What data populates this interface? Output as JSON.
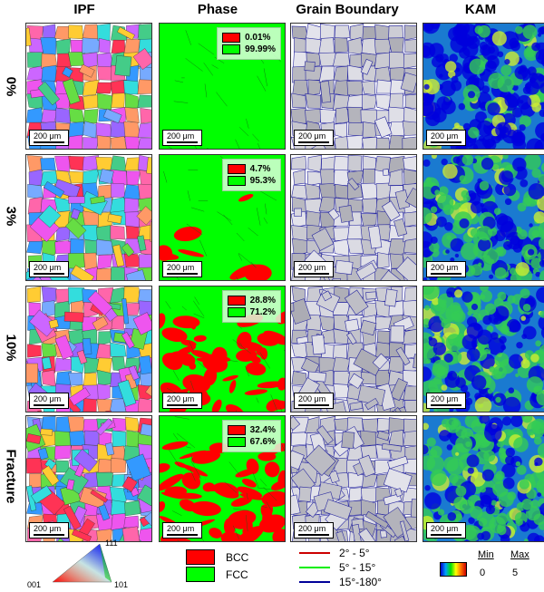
{
  "columns": [
    "IPF",
    "Phase",
    "Grain Boundary",
    "KAM"
  ],
  "rows": [
    {
      "label": "0%",
      "bcc": "0.01%",
      "fcc": "99.99%"
    },
    {
      "label": "3%",
      "bcc": "4.7%",
      "fcc": "95.3%"
    },
    {
      "label": "10%",
      "bcc": "28.8%",
      "fcc": "71.2%"
    },
    {
      "label": "Fracture",
      "bcc": "32.4%",
      "fcc": "67.6%"
    }
  ],
  "scale_bar": "200 μm",
  "ipf_key": {
    "corner_001": "001",
    "corner_111": "111",
    "corner_101": "101"
  },
  "phase_key": {
    "bcc_label": "BCC",
    "fcc_label": "FCC",
    "bcc_color": "#ff0000",
    "fcc_color": "#00ff00"
  },
  "gb_key": {
    "low": "2° - 5°",
    "mid": "5° - 15°",
    "high": "15°-180°",
    "low_color": "#cc0000",
    "mid_color": "#00ee00",
    "high_color": "#000099"
  },
  "kam_key": {
    "min_label": "Min",
    "max_label": "Max",
    "min_value": "0",
    "max_value": "5"
  }
}
